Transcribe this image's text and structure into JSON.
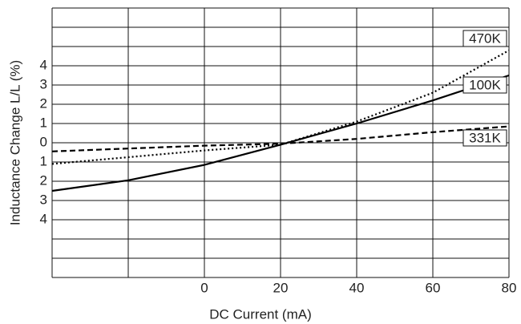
{
  "chart_data": {
    "type": "line",
    "x_label": "DC Current (mA)",
    "y_label": "Inductance Change L/L (%)",
    "x": [
      -40,
      -20,
      0,
      20,
      40,
      60,
      80
    ],
    "series": [
      {
        "name": "470K",
        "color": "#000000",
        "dash": "dotted",
        "values": [
          -1.1,
          -0.75,
          -0.4,
          -0.1,
          1.1,
          2.6,
          4.8
        ]
      },
      {
        "name": "100K",
        "color": "#000000",
        "dash": "solid",
        "values": [
          -2.5,
          -1.95,
          -1.15,
          -0.1,
          1.0,
          2.2,
          3.5
        ]
      },
      {
        "name": "331K",
        "color": "#000000",
        "dash": "dashed",
        "values": [
          -0.45,
          -0.3,
          -0.15,
          -0.05,
          0.2,
          0.55,
          0.85
        ]
      }
    ],
    "xlim": [
      -40,
      80
    ],
    "xticks": [
      {
        "value": -40,
        "label": null
      },
      {
        "value": -20,
        "label": null
      },
      0,
      20,
      40,
      60,
      80
    ],
    "ylim": [
      -7,
      7
    ],
    "yticks": [
      {
        "value": -7,
        "label": null
      },
      {
        "value": -6,
        "label": null
      },
      {
        "value": -5,
        "label": null
      },
      {
        "value": -4,
        "label": "4"
      },
      {
        "value": -3,
        "label": "3"
      },
      {
        "value": -2,
        "label": "2"
      },
      {
        "value": -1,
        "label": "1"
      },
      0,
      1,
      2,
      3,
      4,
      {
        "value": 5,
        "label": null
      },
      {
        "value": 6,
        "label": null
      },
      {
        "value": 7,
        "label": null
      }
    ],
    "grid": true
  }
}
